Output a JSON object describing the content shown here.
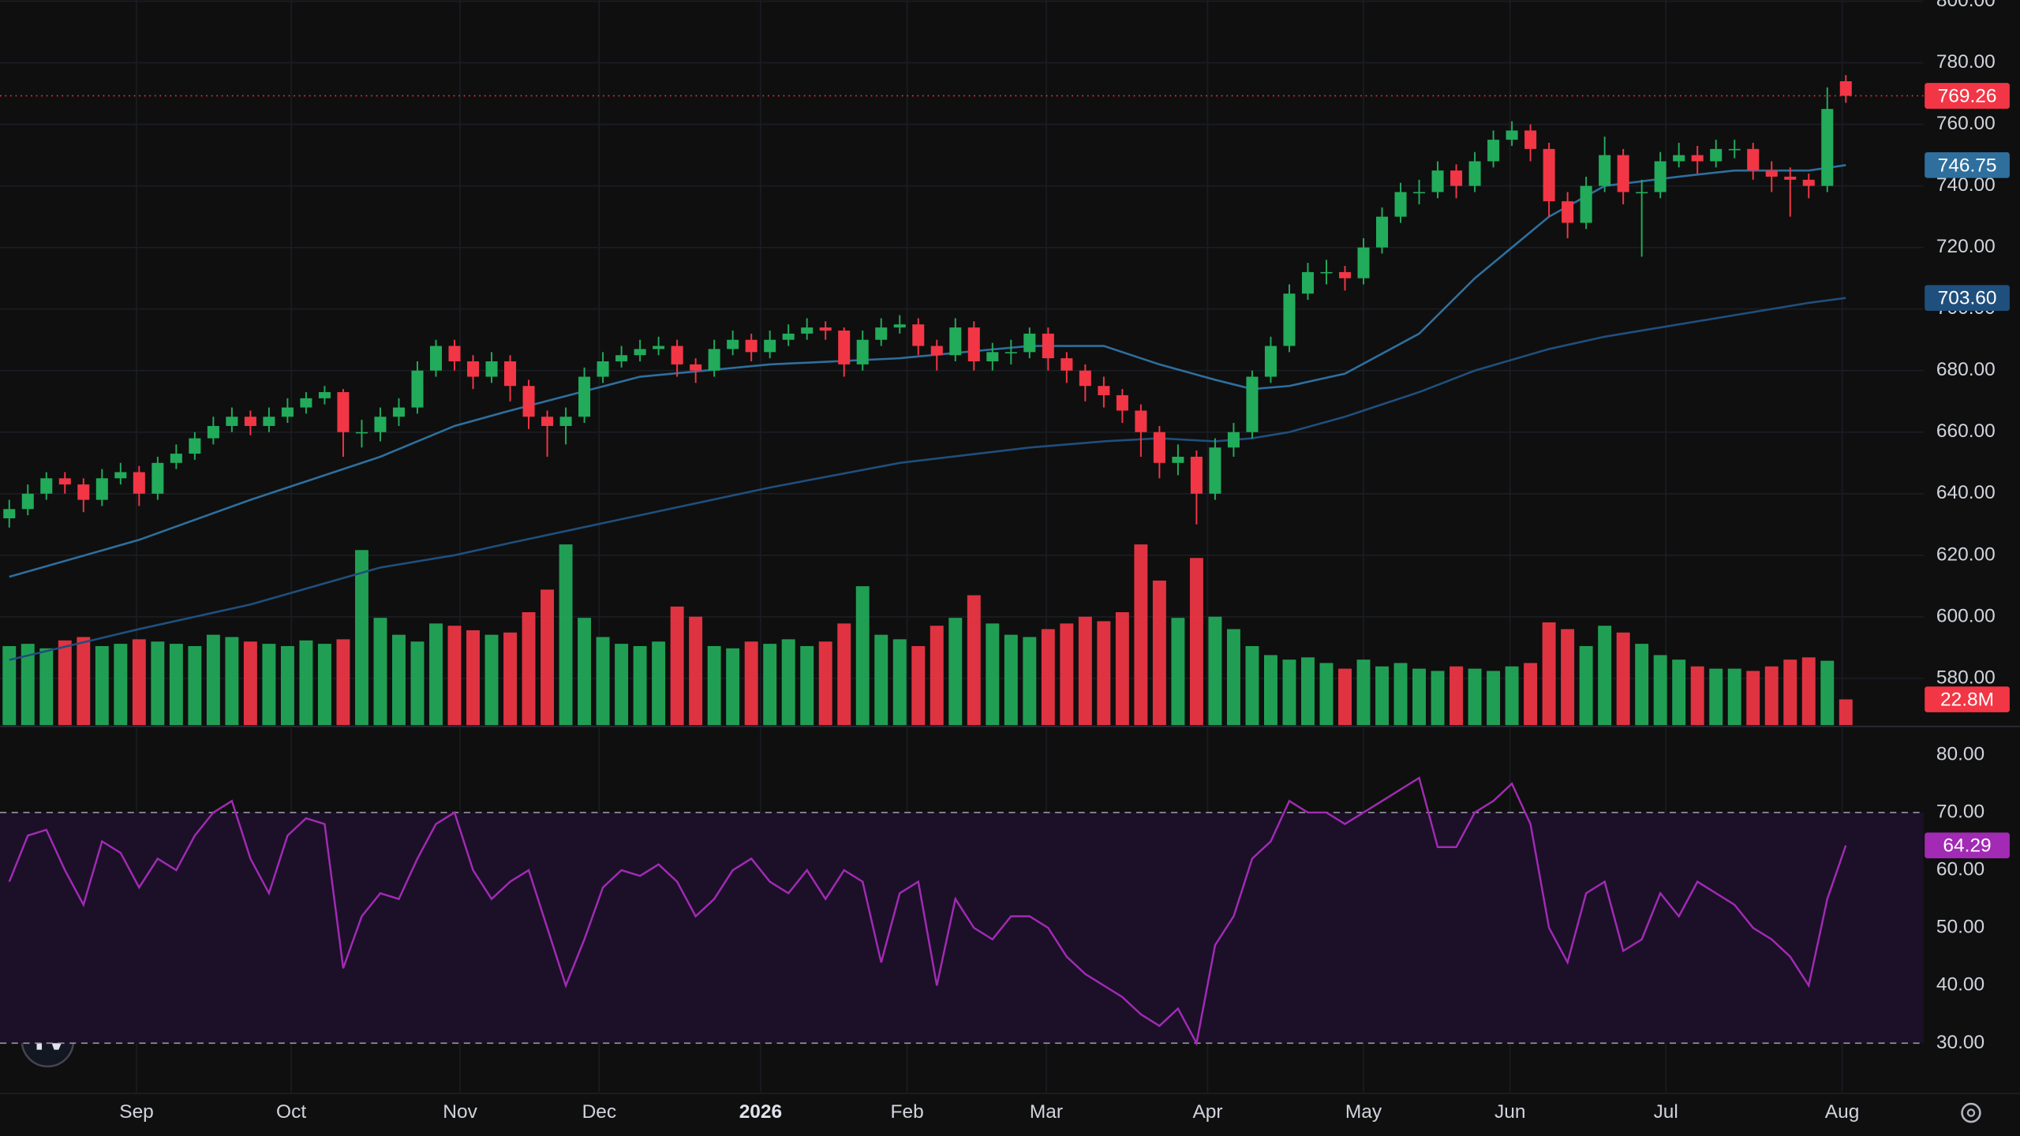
{
  "chart_data": {
    "type": "candlestick",
    "xlim": [
      -0.5,
      103.18
    ],
    "xticks": [
      {
        "value": 6.86,
        "label": "Sep"
      },
      {
        "value": 15.2,
        "label": "Oct"
      },
      {
        "value": 24.3,
        "label": "Nov"
      },
      {
        "value": 31.8,
        "label": "Dec"
      },
      {
        "value": 40.5,
        "label": "2026"
      },
      {
        "value": 48.4,
        "label": "Feb"
      },
      {
        "value": 55.9,
        "label": "Mar"
      },
      {
        "value": 64.6,
        "label": "Apr"
      },
      {
        "value": 73,
        "label": "May"
      },
      {
        "value": 80.9,
        "label": "Jun"
      },
      {
        "value": 89.3,
        "label": "Jul"
      },
      {
        "value": 98.8,
        "label": "Aug"
      }
    ],
    "ylim": [
      564.8,
      800.4
    ],
    "yticks": [
      {
        "value": 580,
        "label": "580.00"
      },
      {
        "value": 600,
        "label": "600.00"
      },
      {
        "value": 620,
        "label": "620.00"
      },
      {
        "value": 640,
        "label": "640.00"
      },
      {
        "value": 660,
        "label": "660.00"
      },
      {
        "value": 680,
        "label": "680.00"
      },
      {
        "value": 700,
        "label": "700.00"
      },
      {
        "value": 720,
        "label": "720.00"
      },
      {
        "value": 740,
        "label": "740.00"
      },
      {
        "value": 760,
        "label": "760.00"
      },
      {
        "value": 780,
        "label": "780.00"
      },
      {
        "value": 800,
        "label": "800.00"
      }
    ],
    "grid": true,
    "up_color": "#22ab5a",
    "down_color": "#f23645",
    "candles": [
      [
        632,
        638,
        629,
        635
      ],
      [
        635,
        643,
        633,
        640
      ],
      [
        640,
        647,
        638,
        645
      ],
      [
        645,
        647,
        640,
        643
      ],
      [
        643,
        645,
        634,
        638
      ],
      [
        638,
        648,
        636,
        645
      ],
      [
        645,
        650,
        643,
        647
      ],
      [
        647,
        649,
        636,
        640
      ],
      [
        640,
        652,
        638,
        650
      ],
      [
        650,
        656,
        648,
        653
      ],
      [
        653,
        660,
        651,
        658
      ],
      [
        658,
        665,
        656,
        662
      ],
      [
        662,
        668,
        660,
        665
      ],
      [
        665,
        667,
        659,
        662
      ],
      [
        662,
        668,
        660,
        665
      ],
      [
        665,
        671,
        663,
        668
      ],
      [
        668,
        673,
        666,
        671
      ],
      [
        671,
        675,
        669,
        673
      ],
      [
        673,
        674,
        652,
        660
      ],
      [
        660,
        664,
        655,
        660
      ],
      [
        660,
        668,
        657,
        665
      ],
      [
        665,
        671,
        662,
        668
      ],
      [
        668,
        683,
        666,
        680
      ],
      [
        680,
        690,
        678,
        688
      ],
      [
        688,
        690,
        680,
        683
      ],
      [
        683,
        685,
        674,
        678
      ],
      [
        678,
        686,
        676,
        683
      ],
      [
        683,
        685,
        670,
        675
      ],
      [
        675,
        677,
        661,
        665
      ],
      [
        665,
        667,
        652,
        662
      ],
      [
        662,
        668,
        656,
        665
      ],
      [
        665,
        681,
        663,
        678
      ],
      [
        678,
        686,
        676,
        683
      ],
      [
        683,
        688,
        681,
        685
      ],
      [
        685,
        690,
        683,
        687
      ],
      [
        687,
        691,
        685,
        688
      ],
      [
        688,
        690,
        678,
        682
      ],
      [
        682,
        684,
        676,
        680
      ],
      [
        680,
        690,
        678,
        687
      ],
      [
        687,
        693,
        685,
        690
      ],
      [
        690,
        692,
        683,
        686
      ],
      [
        686,
        693,
        684,
        690
      ],
      [
        690,
        695,
        688,
        692
      ],
      [
        692,
        697,
        690,
        694
      ],
      [
        694,
        696,
        690,
        693
      ],
      [
        693,
        694,
        678,
        682
      ],
      [
        682,
        693,
        680,
        690
      ],
      [
        690,
        697,
        688,
        694
      ],
      [
        694,
        698,
        692,
        695
      ],
      [
        695,
        697,
        685,
        688
      ],
      [
        688,
        690,
        680,
        685
      ],
      [
        685,
        697,
        683,
        694
      ],
      [
        694,
        696,
        680,
        683
      ],
      [
        683,
        689,
        680,
        686
      ],
      [
        686,
        690,
        682,
        686
      ],
      [
        686,
        694,
        684,
        692
      ],
      [
        692,
        694,
        680,
        684
      ],
      [
        684,
        686,
        676,
        680
      ],
      [
        680,
        682,
        670,
        675
      ],
      [
        675,
        678,
        668,
        672
      ],
      [
        672,
        674,
        663,
        667
      ],
      [
        667,
        669,
        652,
        660
      ],
      [
        660,
        662,
        645,
        650
      ],
      [
        650,
        656,
        646,
        652
      ],
      [
        652,
        654,
        630,
        640
      ],
      [
        640,
        658,
        638,
        655
      ],
      [
        655,
        663,
        652,
        660
      ],
      [
        660,
        680,
        658,
        678
      ],
      [
        678,
        691,
        676,
        688
      ],
      [
        688,
        708,
        686,
        705
      ],
      [
        705,
        715,
        703,
        712
      ],
      [
        712,
        716,
        708,
        712
      ],
      [
        712,
        714,
        706,
        710
      ],
      [
        710,
        723,
        708,
        720
      ],
      [
        720,
        733,
        718,
        730
      ],
      [
        730,
        741,
        728,
        738
      ],
      [
        738,
        742,
        734,
        738
      ],
      [
        738,
        748,
        736,
        745
      ],
      [
        745,
        747,
        736,
        740
      ],
      [
        740,
        751,
        738,
        748
      ],
      [
        748,
        758,
        746,
        755
      ],
      [
        755,
        761,
        753,
        758
      ],
      [
        758,
        760,
        748,
        752
      ],
      [
        752,
        754,
        730,
        735
      ],
      [
        735,
        738,
        723,
        728
      ],
      [
        728,
        743,
        726,
        740
      ],
      [
        740,
        756,
        738,
        750
      ],
      [
        750,
        752,
        734,
        738
      ],
      [
        738,
        742,
        717,
        738
      ],
      [
        738,
        751,
        736,
        748
      ],
      [
        748,
        754,
        746,
        750
      ],
      [
        750,
        753,
        744,
        748
      ],
      [
        748,
        755,
        746,
        752
      ],
      [
        752,
        755,
        749,
        752
      ],
      [
        752,
        754,
        742,
        745
      ],
      [
        745,
        748,
        738,
        743
      ],
      [
        743,
        746,
        730,
        742
      ],
      [
        742,
        744,
        736,
        740
      ],
      [
        740,
        772,
        738,
        765
      ],
      [
        774,
        776,
        767,
        769.26
      ]
    ],
    "last_price_label": "769.26",
    "moving_averages": [
      {
        "color": "#2e6f9e",
        "x": [
          0,
          7,
          13,
          20,
          24,
          27,
          34,
          41,
          48,
          55,
          59,
          62,
          65,
          67,
          69,
          72,
          76,
          79,
          83,
          86,
          90,
          93,
          97,
          99
        ],
        "values": [
          613,
          625,
          638,
          652,
          662,
          667,
          678,
          682,
          684,
          688,
          688,
          682,
          677,
          674,
          675,
          679,
          692,
          710,
          730,
          740,
          743,
          745,
          745,
          746.75
        ],
        "last_label": "746.75"
      },
      {
        "color": "#1f4f7d",
        "x": [
          0,
          7,
          13,
          20,
          24,
          27,
          34,
          41,
          48,
          55,
          59,
          62,
          65,
          67,
          69,
          72,
          76,
          79,
          83,
          86,
          90,
          93,
          97,
          99
        ],
        "values": [
          586,
          596,
          604,
          616,
          620,
          624,
          633,
          642,
          650,
          655,
          657,
          658,
          657,
          658,
          660,
          665,
          673,
          680,
          687,
          691,
          695,
          698,
          702,
          703.6
        ],
        "last_label": "703.60"
      }
    ],
    "volume": {
      "ylim": [
        0,
        642
      ],
      "last_label": "22.8M",
      "values": [
        70,
        72,
        68,
        75,
        78,
        70,
        72,
        76,
        74,
        72,
        70,
        80,
        78,
        74,
        72,
        70,
        75,
        72,
        76,
        155,
        95,
        80,
        74,
        90,
        88,
        84,
        80,
        82,
        100,
        120,
        160,
        95,
        78,
        72,
        70,
        74,
        105,
        96,
        70,
        68,
        74,
        72,
        76,
        70,
        74,
        90,
        123,
        80,
        76,
        70,
        88,
        95,
        115,
        90,
        80,
        78,
        85,
        90,
        96,
        92,
        100,
        160,
        128,
        95,
        148,
        96,
        85,
        70,
        62,
        58,
        60,
        55,
        50,
        58,
        52,
        55,
        50,
        48,
        52,
        50,
        48,
        52,
        55,
        91,
        85,
        70,
        88,
        82,
        72,
        62,
        58,
        52,
        50,
        50,
        48,
        52,
        58,
        60,
        57,
        22.8
      ]
    },
    "rsi": {
      "ylim": [
        21.5,
        84.7
      ],
      "yticks": [
        {
          "value": 30,
          "label": "30.00"
        },
        {
          "value": 40,
          "label": "40.00"
        },
        {
          "value": 50,
          "label": "50.00"
        },
        {
          "value": 60,
          "label": "60.00"
        },
        {
          "value": 70,
          "label": "70.00"
        },
        {
          "value": 80,
          "label": "80.00"
        }
      ],
      "bands": [
        30,
        70
      ],
      "color": "#a22ab5",
      "last_label": "64.29",
      "values": [
        58,
        66,
        67,
        60,
        54,
        65,
        63,
        57,
        62,
        60,
        66,
        70,
        72,
        62,
        56,
        66,
        69,
        68,
        43,
        52,
        56,
        55,
        62,
        68,
        70,
        60,
        55,
        58,
        60,
        50,
        40,
        48,
        57,
        60,
        59,
        61,
        58,
        52,
        55,
        60,
        62,
        58,
        56,
        60,
        55,
        60,
        58,
        44,
        56,
        58,
        40,
        55,
        50,
        48,
        52,
        52,
        50,
        45,
        42,
        40,
        38,
        35,
        33,
        36,
        30,
        47,
        52,
        62,
        65,
        72,
        70,
        70,
        68,
        70,
        72,
        74,
        76,
        64,
        64,
        70,
        72,
        75,
        68,
        50,
        44,
        56,
        58,
        46,
        48,
        56,
        52,
        58,
        56,
        54,
        50,
        48,
        45,
        40,
        55,
        64.29
      ]
    }
  }
}
